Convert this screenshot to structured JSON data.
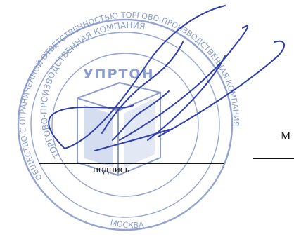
{
  "document": {
    "mp_mark": "М",
    "signature_caption": "подпись"
  },
  "seal": {
    "outer_text": "ОБЩЕСТВО С ОГРАНИЧЕННОЙ ОТВЕТСТВЕННОСТЬЮ ТОРГОВО-ПРОИЗВОДСТВЕННАЯ КОМПАНИЯ",
    "inner_text_top": "ТОРГОВО-ПРОИЗВОДСТВЕННАЯ КОМПАНИЯ",
    "bottom_text": "МОСКВА",
    "logo_text": "УПРТОН",
    "ink_color": "#6f86c4",
    "signature_color": "#2d3fb0"
  }
}
